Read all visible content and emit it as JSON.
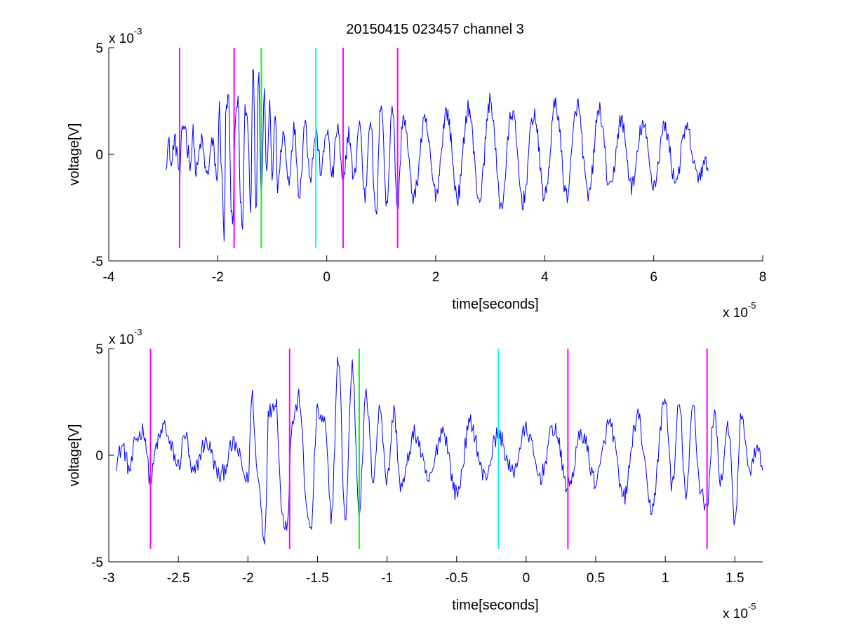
{
  "figure": {
    "title": "20150415 023457 channel 3"
  },
  "chart_data": [
    {
      "type": "line",
      "id": "top",
      "xlabel": "time[seconds]",
      "ylabel": "voltage[V]",
      "xlim": [
        -4e-05,
        8e-05
      ],
      "ylim": [
        -0.005,
        0.005
      ],
      "x_ticks": [
        -4e-05,
        -2e-05,
        0,
        2e-05,
        4e-05,
        6e-05,
        8e-05
      ],
      "x_tick_labels": [
        "-4",
        "-2",
        "0",
        "2",
        "4",
        "6",
        "8"
      ],
      "y_ticks": [
        -0.005,
        0,
        0.005
      ],
      "y_tick_labels": [
        "-5",
        "0",
        "5"
      ],
      "x_multiplier": "x 10",
      "x_multiplier_exp": "-5",
      "y_multiplier": "x 10",
      "y_multiplier_exp": "-3",
      "grid": false,
      "signal_x_range": [
        -2.95e-05,
        7e-05
      ],
      "series_color": "#0000ff",
      "signal_peaks": [
        [
          -2.95e-05,
          -0.0003
        ],
        [
          -2.9e-05,
          0.0005
        ],
        [
          -2.85e-05,
          -0.0006
        ],
        [
          -2.8e-05,
          0.0007
        ],
        [
          -2.75e-05,
          0.0002
        ],
        [
          -2.7e-05,
          -0.0012
        ],
        [
          -2.65e-05,
          0.0012
        ],
        [
          -2.6e-05,
          0.0014
        ],
        [
          -2.55e-05,
          0.0002
        ],
        [
          -2.5e-05,
          -0.0004
        ],
        [
          -2.45e-05,
          0.001
        ],
        [
          -2.4e-05,
          -0.0009
        ],
        [
          -2.3e-05,
          0.0006
        ],
        [
          -2.2e-05,
          -0.001
        ],
        [
          -2.1e-05,
          0.0005
        ],
        [
          -2e-05,
          -0.0012
        ],
        [
          -1.97e-05,
          0.0028
        ],
        [
          -1.93e-05,
          -0.001
        ],
        [
          -1.88e-05,
          -0.0039
        ],
        [
          -1.85e-05,
          0.002
        ],
        [
          -1.8e-05,
          0.0026
        ],
        [
          -1.75e-05,
          -0.003
        ],
        [
          -1.72e-05,
          -0.0032
        ],
        [
          -1.68e-05,
          0.0016
        ],
        [
          -1.63e-05,
          0.0027
        ],
        [
          -1.58e-05,
          -0.0022
        ],
        [
          -1.55e-05,
          -0.0037
        ],
        [
          -1.5e-05,
          0.002
        ],
        [
          -1.45e-05,
          0.0015
        ],
        [
          -1.4e-05,
          -0.0028
        ],
        [
          -1.35e-05,
          0.0045
        ],
        [
          -1.3e-05,
          -0.003
        ],
        [
          -1.25e-05,
          0.0042
        ],
        [
          -1.2e-05,
          -0.0025
        ],
        [
          -1.15e-05,
          0.0028
        ],
        [
          -1.1e-05,
          -0.001
        ],
        [
          -1.05e-05,
          0.0022
        ],
        [
          -1e-05,
          -0.0012
        ],
        [
          -9.5e-06,
          0.002
        ],
        [
          -9e-06,
          -0.0015
        ],
        [
          -8e-06,
          0.001
        ],
        [
          -7e-06,
          -0.0012
        ],
        [
          -6e-06,
          0.0012
        ],
        [
          -5e-06,
          -0.0018
        ],
        [
          -4e-06,
          0.0015
        ],
        [
          -3e-06,
          -0.001
        ],
        [
          -2e-06,
          0.001
        ],
        [
          -1e-06,
          -0.0008
        ],
        [
          0,
          0.0012
        ],
        [
          1e-06,
          -0.001
        ],
        [
          2e-06,
          0.0013
        ],
        [
          3e-06,
          -0.0015
        ],
        [
          4e-06,
          0.001
        ],
        [
          5e-06,
          -0.0012
        ],
        [
          6e-06,
          0.0015
        ],
        [
          7e-06,
          -0.002
        ],
        [
          8e-06,
          0.0018
        ],
        [
          9e-06,
          -0.003
        ],
        [
          1e-05,
          0.0026
        ],
        [
          1.1e-05,
          -0.0025
        ],
        [
          1.2e-05,
          0.0024
        ],
        [
          1.3e-05,
          -0.0025
        ],
        [
          1.4e-05,
          0.0018
        ],
        [
          1.6e-05,
          -0.002
        ],
        [
          1.8e-05,
          0.0015
        ],
        [
          2e-05,
          -0.0018
        ],
        [
          2.2e-05,
          0.002
        ],
        [
          2.4e-05,
          -0.002
        ],
        [
          2.6e-05,
          0.0022
        ],
        [
          2.8e-05,
          -0.0021
        ],
        [
          3e-05,
          0.0025
        ],
        [
          3.2e-05,
          -0.0024
        ],
        [
          3.4e-05,
          0.002
        ],
        [
          3.6e-05,
          -0.0022
        ],
        [
          3.8e-05,
          0.0019
        ],
        [
          4e-05,
          -0.002
        ],
        [
          4.2e-05,
          0.0024
        ],
        [
          4.4e-05,
          -0.0019
        ],
        [
          4.6e-05,
          0.0023
        ],
        [
          4.8e-05,
          -0.002
        ],
        [
          5e-05,
          0.0021
        ],
        [
          5.2e-05,
          -0.0017
        ],
        [
          5.4e-05,
          0.0016
        ],
        [
          5.6e-05,
          -0.0015
        ],
        [
          5.8e-05,
          0.0014
        ],
        [
          6e-05,
          -0.0014
        ],
        [
          6.2e-05,
          0.0013
        ],
        [
          6.4e-05,
          -0.0012
        ],
        [
          6.6e-05,
          0.0012
        ],
        [
          6.8e-05,
          -0.001
        ],
        [
          7e-05,
          -0.0004
        ]
      ],
      "markers": [
        {
          "x": -2.7e-05,
          "color": "#ff00ff"
        },
        {
          "x": -1.7e-05,
          "color": "#ff00ff"
        },
        {
          "x": -1.2e-05,
          "color": "#00ff00"
        },
        {
          "x": -2e-06,
          "color": "#00ffff"
        },
        {
          "x": 3e-06,
          "color": "#ff00ff"
        },
        {
          "x": 1.3e-05,
          "color": "#ff00ff"
        }
      ],
      "marker_y_range": [
        -0.0044,
        0.005
      ]
    },
    {
      "type": "line",
      "id": "bottom",
      "xlabel": "time[seconds]",
      "ylabel": "voltage[V]",
      "xlim": [
        -3e-05,
        1.7e-05
      ],
      "ylim": [
        -0.005,
        0.005
      ],
      "x_ticks": [
        -3e-05,
        -2.5e-05,
        -2e-05,
        -1.5e-05,
        -1e-05,
        -5e-06,
        0,
        5e-06,
        1e-05,
        1.5e-05
      ],
      "x_tick_labels": [
        "-3",
        "-2.5",
        "-2",
        "-1.5",
        "-1",
        "-0.5",
        "0",
        "0.5",
        "1",
        "1.5"
      ],
      "y_ticks": [
        -0.005,
        0,
        0.005
      ],
      "y_tick_labels": [
        "-5",
        "0",
        "5"
      ],
      "x_multiplier": "x 10",
      "x_multiplier_exp": "-5",
      "y_multiplier": "x 10",
      "y_multiplier_exp": "-3",
      "grid": false,
      "signal_x_range": [
        -2.95e-05,
        1.7e-05
      ],
      "series_color": "#0000ff",
      "signal_peaks": [
        [
          -2.95e-05,
          -0.0003
        ],
        [
          -2.9e-05,
          0.0004
        ],
        [
          -2.85e-05,
          -0.0007
        ],
        [
          -2.8e-05,
          0.0008
        ],
        [
          -2.75e-05,
          0.0012
        ],
        [
          -2.7e-05,
          -0.0012
        ],
        [
          -2.65e-05,
          0.0006
        ],
        [
          -2.6e-05,
          0.0014
        ],
        [
          -2.55e-05,
          0.0003
        ],
        [
          -2.5e-05,
          -0.0005
        ],
        [
          -2.45e-05,
          0.001
        ],
        [
          -2.4e-05,
          -0.0009
        ],
        [
          -2.3e-05,
          0.0006
        ],
        [
          -2.2e-05,
          -0.001
        ],
        [
          -2.1e-05,
          0.0005
        ],
        [
          -2e-05,
          -0.0012
        ],
        [
          -1.97e-05,
          0.0028
        ],
        [
          -1.93e-05,
          -0.001
        ],
        [
          -1.88e-05,
          -0.0039
        ],
        [
          -1.85e-05,
          0.002
        ],
        [
          -1.8e-05,
          0.0026
        ],
        [
          -1.75e-05,
          -0.003
        ],
        [
          -1.72e-05,
          -0.0032
        ],
        [
          -1.68e-05,
          0.0016
        ],
        [
          -1.63e-05,
          0.0027
        ],
        [
          -1.58e-05,
          -0.0022
        ],
        [
          -1.55e-05,
          -0.0037
        ],
        [
          -1.5e-05,
          0.002
        ],
        [
          -1.45e-05,
          0.0015
        ],
        [
          -1.4e-05,
          -0.0028
        ],
        [
          -1.35e-05,
          0.0045
        ],
        [
          -1.3e-05,
          -0.003
        ],
        [
          -1.25e-05,
          0.0042
        ],
        [
          -1.2e-05,
          -0.0025
        ],
        [
          -1.15e-05,
          0.0028
        ],
        [
          -1.1e-05,
          -0.001
        ],
        [
          -1.05e-05,
          0.0022
        ],
        [
          -1e-05,
          -0.0012
        ],
        [
          -9.5e-06,
          0.002
        ],
        [
          -9e-06,
          -0.0015
        ],
        [
          -8e-06,
          0.001
        ],
        [
          -7e-06,
          -0.0012
        ],
        [
          -6e-06,
          0.0012
        ],
        [
          -5e-06,
          -0.0018
        ],
        [
          -4e-06,
          0.0015
        ],
        [
          -3e-06,
          -0.001
        ],
        [
          -2e-06,
          0.001
        ],
        [
          -1e-06,
          -0.0008
        ],
        [
          0,
          0.0012
        ],
        [
          1e-06,
          -0.001
        ],
        [
          2e-06,
          0.0013
        ],
        [
          3e-06,
          -0.0015
        ],
        [
          4e-06,
          0.001
        ],
        [
          5e-06,
          -0.0012
        ],
        [
          6e-06,
          0.0015
        ],
        [
          7e-06,
          -0.002
        ],
        [
          8e-06,
          0.0018
        ],
        [
          9e-06,
          -0.0025
        ],
        [
          1e-05,
          0.0026
        ],
        [
          1.05e-05,
          -0.0015
        ],
        [
          1.1e-05,
          0.0024
        ],
        [
          1.15e-05,
          -0.002
        ],
        [
          1.2e-05,
          0.0024
        ],
        [
          1.25e-05,
          -0.0015
        ],
        [
          1.3e-05,
          -0.0025
        ],
        [
          1.35e-05,
          0.002
        ],
        [
          1.4e-05,
          -0.0012
        ],
        [
          1.45e-05,
          0.0015
        ],
        [
          1.5e-05,
          -0.0032
        ],
        [
          1.55e-05,
          0.002
        ],
        [
          1.6e-05,
          -0.0008
        ],
        [
          1.65e-05,
          0.0002
        ],
        [
          1.7e-05,
          -0.0003
        ]
      ],
      "markers": [
        {
          "x": -2.7e-05,
          "color": "#ff00ff"
        },
        {
          "x": -1.7e-05,
          "color": "#ff00ff"
        },
        {
          "x": -1.2e-05,
          "color": "#00ff00"
        },
        {
          "x": -2e-06,
          "color": "#00ffff"
        },
        {
          "x": 3e-06,
          "color": "#ff00ff"
        },
        {
          "x": 1.3e-05,
          "color": "#ff00ff"
        }
      ],
      "marker_y_range": [
        -0.0044,
        0.005
      ]
    }
  ]
}
